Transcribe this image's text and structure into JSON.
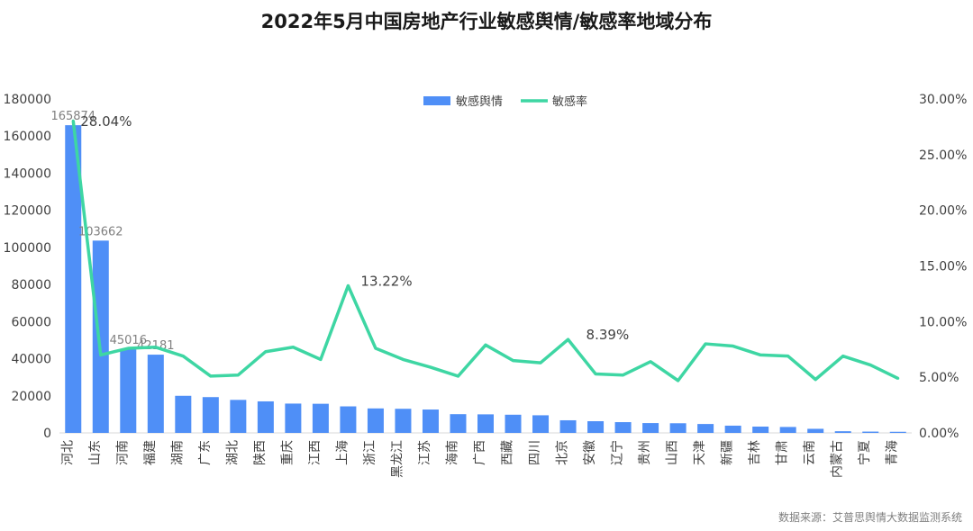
{
  "title": "2022年5月中国房地产行业敏感舆情/敏感率地域分布",
  "source": "数据来源：艾普思舆情大数据监测系统",
  "chart_data": {
    "type": "bar+line",
    "categories": [
      "河北",
      "山东",
      "河南",
      "福建",
      "湖南",
      "广东",
      "湖北",
      "陕西",
      "重庆",
      "江西",
      "上海",
      "浙江",
      "黑龙江",
      "江苏",
      "海南",
      "广西",
      "西藏",
      "四川",
      "北京",
      "安徽",
      "辽宁",
      "贵州",
      "山西",
      "天津",
      "新疆",
      "吉林",
      "甘肃",
      "云南",
      "内蒙古",
      "宁夏",
      "青海"
    ],
    "series": [
      {
        "name": "敏感舆情",
        "axis": "left",
        "type": "bar",
        "color": "#4f8ff7",
        "values": [
          165874,
          103662,
          45016,
          42181,
          20000,
          19300,
          17800,
          17000,
          15800,
          15700,
          14300,
          13200,
          13000,
          12600,
          10100,
          10000,
          9800,
          9500,
          6800,
          6300,
          5800,
          5300,
          5200,
          4800,
          3900,
          3400,
          3200,
          2200,
          900,
          700,
          600
        ]
      },
      {
        "name": "敏感率",
        "axis": "right",
        "type": "line",
        "color": "#3ed6a3",
        "values": [
          28.04,
          7.0,
          7.6,
          7.7,
          6.9,
          5.1,
          5.2,
          7.3,
          7.7,
          6.6,
          13.22,
          7.6,
          6.6,
          5.9,
          5.1,
          7.9,
          6.5,
          6.3,
          8.39,
          5.3,
          5.2,
          6.4,
          4.7,
          8.0,
          7.8,
          7.0,
          6.9,
          4.8,
          6.9,
          6.1,
          4.9
        ]
      }
    ],
    "bar_labels": [
      "165874",
      "103662",
      "45016",
      "42181"
    ],
    "line_labels": [
      {
        "index": 0,
        "text": "28.04%"
      },
      {
        "index": 10,
        "text": "13.22%"
      },
      {
        "index": 18,
        "text": "8.39%"
      }
    ],
    "y_left": {
      "min": 0,
      "max": 180000,
      "step": 20000
    },
    "y_right": {
      "min": 0,
      "max": 30,
      "step": 5
    },
    "legend_position": "top-center",
    "grid": false
  }
}
